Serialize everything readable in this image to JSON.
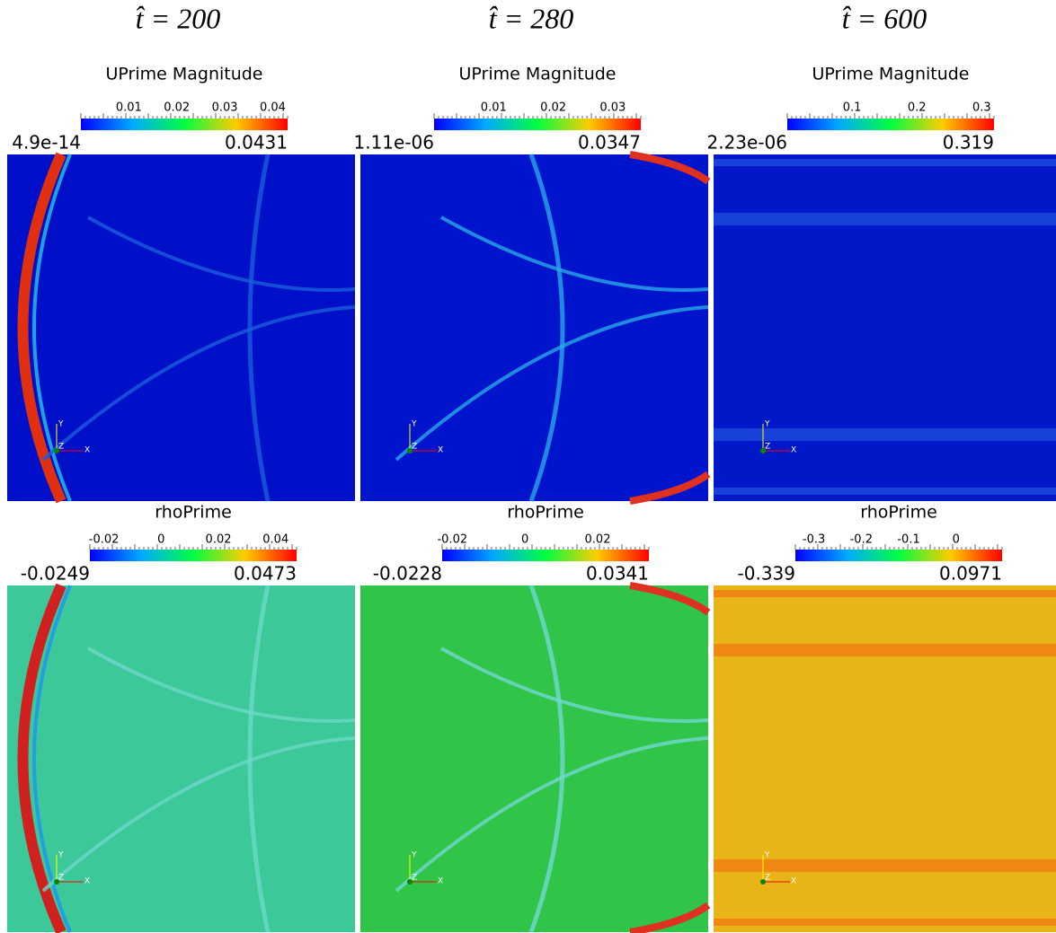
{
  "columns": [
    {
      "time": "t̂ = 200",
      "panels": [
        {
          "title": "UPrime Magnitude",
          "ticks": [
            "0.01",
            "0.02",
            "0.03",
            "0.04"
          ],
          "min": "4.9e-14",
          "max": "0.0431"
        },
        {
          "title": "rhoPrime",
          "ticks": [
            "-0.02",
            "0",
            "0.02",
            "0.04"
          ],
          "min": "-0.0249",
          "max": "0.0473"
        }
      ]
    },
    {
      "time": "t̂ = 280",
      "panels": [
        {
          "title": "UPrime Magnitude",
          "ticks": [
            "0.01",
            "0.02",
            "0.03"
          ],
          "min": "1.11e-06",
          "max": "0.0347"
        },
        {
          "title": "rhoPrime",
          "ticks": [
            "-0.02",
            "0",
            "0.02"
          ],
          "min": "-0.0228",
          "max": "0.0341"
        }
      ]
    },
    {
      "time": "t̂ = 600",
      "panels": [
        {
          "title": "UPrime Magnitude",
          "ticks": [
            "0.1",
            "0.2",
            "0.3"
          ],
          "min": "2.23e-06",
          "max": "0.319"
        },
        {
          "title": "rhoPrime",
          "ticks": [
            "-0.3",
            "-0.2",
            "-0.1",
            "0"
          ],
          "min": "-0.339",
          "max": "0.0971"
        }
      ]
    }
  ],
  "triad": {
    "x": "X",
    "y": "Y",
    "z": "Z"
  }
}
